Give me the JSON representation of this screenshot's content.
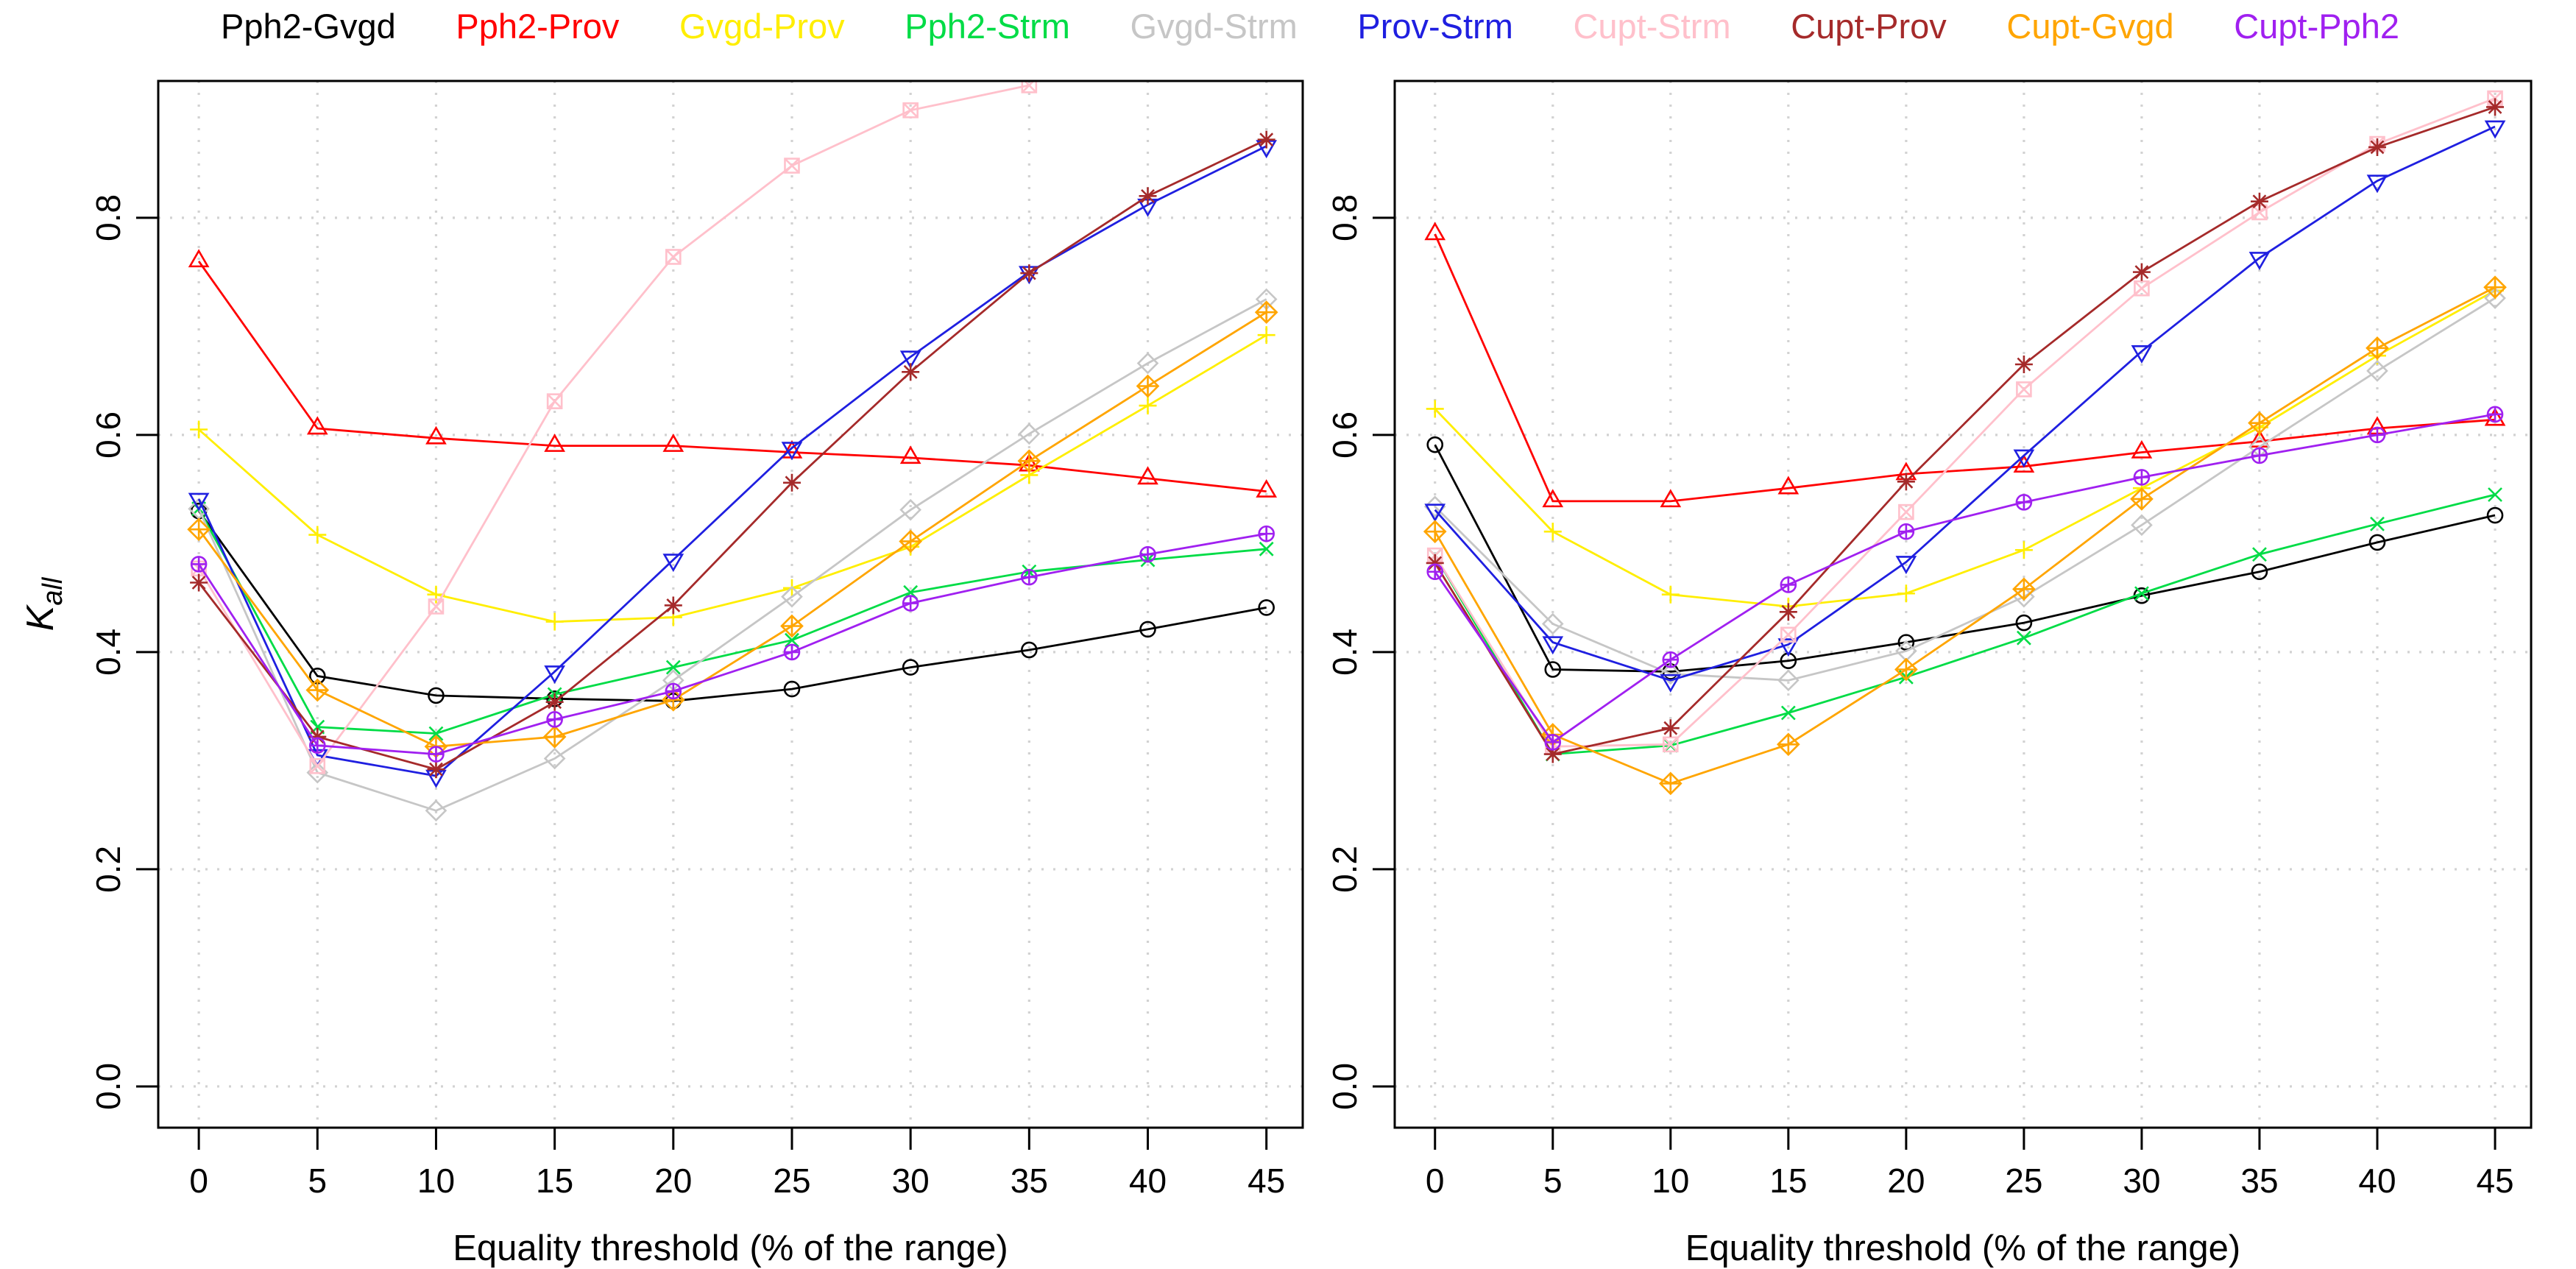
{
  "figure": {
    "background": "#ffffff"
  },
  "legend": {
    "items": [
      {
        "label": "Pph2-Gvgd",
        "color": "#000000"
      },
      {
        "label": "Pph2-Prov",
        "color": "#FF0000"
      },
      {
        "label": "Gvgd-Prov",
        "color": "#FFEE00"
      },
      {
        "label": "Pph2-Strm",
        "color": "#00DC46"
      },
      {
        "label": "Gvgd-Strm",
        "color": "#C6C6C6"
      },
      {
        "label": "Prov-Strm",
        "color": "#1F1FE0"
      },
      {
        "label": "Cupt-Strm",
        "color": "#FFC0CB"
      },
      {
        "label": "Cupt-Prov",
        "color": "#A52A2A"
      },
      {
        "label": "Cupt-Gvgd",
        "color": "#FFA500"
      },
      {
        "label": "Cupt-Pph2",
        "color": "#A020F0"
      }
    ]
  },
  "y_axis": {
    "title_main": "K",
    "title_sub": "all",
    "tick_labels": [
      "0.0",
      "0.2",
      "0.4",
      "0.6",
      "0.8"
    ],
    "tick_values": [
      0.0,
      0.2,
      0.4,
      0.6,
      0.8
    ]
  },
  "x_axis": {
    "title": "Equality threshold (% of the range)",
    "tick_labels": [
      "0",
      "5",
      "10",
      "15",
      "20",
      "25",
      "30",
      "35",
      "40",
      "45"
    ],
    "tick_values": [
      0,
      5,
      10,
      15,
      20,
      25,
      30,
      35,
      40,
      45
    ]
  },
  "chart_data": [
    {
      "type": "line",
      "panel": "left",
      "x": [
        0,
        5,
        10,
        15,
        20,
        25,
        30,
        35,
        40,
        45
      ],
      "xlim": [
        -1.71,
        46.53
      ],
      "ylim": [
        -0.038,
        0.926
      ],
      "grid": "dotted",
      "xlabel": "Equality threshold (% of the range)",
      "ylabel": "K_all",
      "series": [
        {
          "name": "Pph2-Gvgd",
          "color": "#000000",
          "marker": "circle",
          "values": [
            0.53,
            0.378,
            0.36,
            0.357,
            0.355,
            0.366,
            0.386,
            0.402,
            0.421,
            0.441
          ]
        },
        {
          "name": "Pph2-Prov",
          "color": "#FF0000",
          "marker": "triangle-up",
          "values": [
            0.76,
            0.606,
            0.597,
            0.59,
            0.59,
            0.584,
            0.579,
            0.572,
            0.56,
            0.548
          ]
        },
        {
          "name": "Gvgd-Prov",
          "color": "#FFEE00",
          "marker": "plus",
          "values": [
            0.605,
            0.508,
            0.453,
            0.428,
            0.432,
            0.459,
            0.497,
            0.563,
            0.627,
            0.692
          ]
        },
        {
          "name": "Pph2-Strm",
          "color": "#00DC46",
          "marker": "cross",
          "values": [
            0.532,
            0.331,
            0.325,
            0.361,
            0.386,
            0.411,
            0.455,
            0.474,
            0.485,
            0.495
          ]
        },
        {
          "name": "Gvgd-Strm",
          "color": "#C6C6C6",
          "marker": "diamond",
          "values": [
            0.532,
            0.289,
            0.254,
            0.302,
            0.374,
            0.451,
            0.531,
            0.601,
            0.666,
            0.725
          ]
        },
        {
          "name": "Prov-Strm",
          "color": "#1F1FE0",
          "marker": "triangle-down",
          "values": [
            0.541,
            0.305,
            0.286,
            0.382,
            0.485,
            0.588,
            0.672,
            0.75,
            0.812,
            0.866
          ]
        },
        {
          "name": "Cupt-Strm",
          "color": "#FFC0CB",
          "marker": "square-cross",
          "values": [
            0.477,
            0.295,
            0.442,
            0.631,
            0.764,
            0.848,
            0.899,
            0.922,
            null,
            null
          ]
        },
        {
          "name": "Cupt-Prov",
          "color": "#A52A2A",
          "marker": "asterisk",
          "values": [
            0.464,
            0.322,
            0.292,
            0.354,
            0.443,
            0.556,
            0.658,
            0.749,
            0.82,
            0.872
          ]
        },
        {
          "name": "Cupt-Gvgd",
          "color": "#FFA500",
          "marker": "diamond-plus",
          "values": [
            0.513,
            0.365,
            0.313,
            0.322,
            0.356,
            0.424,
            0.502,
            0.576,
            0.645,
            0.713
          ]
        },
        {
          "name": "Cupt-Pph2",
          "color": "#A020F0",
          "marker": "circle-plus",
          "values": [
            0.481,
            0.314,
            0.306,
            0.338,
            0.364,
            0.4,
            0.445,
            0.469,
            0.49,
            0.509
          ]
        }
      ]
    },
    {
      "type": "line",
      "panel": "right",
      "x": [
        0,
        5,
        10,
        15,
        20,
        25,
        30,
        35,
        40,
        45
      ],
      "xlim": [
        -1.71,
        46.53
      ],
      "ylim": [
        -0.038,
        0.926
      ],
      "grid": "dotted",
      "xlabel": "Equality threshold (% of the range)",
      "ylabel": "K_all",
      "series": [
        {
          "name": "Pph2-Gvgd",
          "color": "#000000",
          "marker": "circle",
          "values": [
            0.591,
            0.384,
            0.382,
            0.392,
            0.409,
            0.427,
            0.452,
            0.474,
            0.501,
            0.526
          ]
        },
        {
          "name": "Pph2-Prov",
          "color": "#FF0000",
          "marker": "triangle-up",
          "values": [
            0.785,
            0.539,
            0.539,
            0.551,
            0.564,
            0.571,
            0.584,
            0.594,
            0.606,
            0.614
          ]
        },
        {
          "name": "Gvgd-Prov",
          "color": "#FFEE00",
          "marker": "plus",
          "values": [
            0.624,
            0.511,
            0.453,
            0.442,
            0.454,
            0.494,
            0.551,
            0.607,
            0.673,
            0.733
          ]
        },
        {
          "name": "Pph2-Strm",
          "color": "#00DC46",
          "marker": "cross",
          "values": [
            0.489,
            0.306,
            0.314,
            0.344,
            0.377,
            0.413,
            0.454,
            0.49,
            0.518,
            0.545
          ]
        },
        {
          "name": "Gvgd-Strm",
          "color": "#C6C6C6",
          "marker": "diamond",
          "values": [
            0.534,
            0.426,
            0.38,
            0.374,
            0.401,
            0.451,
            0.517,
            0.589,
            0.659,
            0.726
          ]
        },
        {
          "name": "Prov-Strm",
          "color": "#1F1FE0",
          "marker": "triangle-down",
          "values": [
            0.531,
            0.409,
            0.374,
            0.407,
            0.483,
            0.581,
            0.677,
            0.763,
            0.834,
            0.884
          ]
        },
        {
          "name": "Cupt-Strm",
          "color": "#FFC0CB",
          "marker": "square-cross",
          "values": [
            0.489,
            0.313,
            0.315,
            0.416,
            0.529,
            0.642,
            0.735,
            0.805,
            0.868,
            0.91
          ]
        },
        {
          "name": "Cupt-Prov",
          "color": "#A52A2A",
          "marker": "asterisk",
          "values": [
            0.482,
            0.306,
            0.33,
            0.437,
            0.557,
            0.665,
            0.75,
            0.815,
            0.865,
            0.902
          ]
        },
        {
          "name": "Cupt-Gvgd",
          "color": "#FFA500",
          "marker": "diamond-plus",
          "values": [
            0.511,
            0.324,
            0.279,
            0.315,
            0.384,
            0.458,
            0.541,
            0.611,
            0.68,
            0.736
          ]
        },
        {
          "name": "Cupt-Pph2",
          "color": "#A020F0",
          "marker": "circle-plus",
          "values": [
            0.474,
            0.317,
            0.393,
            0.462,
            0.511,
            0.538,
            0.561,
            0.581,
            0.6,
            0.619
          ]
        }
      ]
    }
  ]
}
